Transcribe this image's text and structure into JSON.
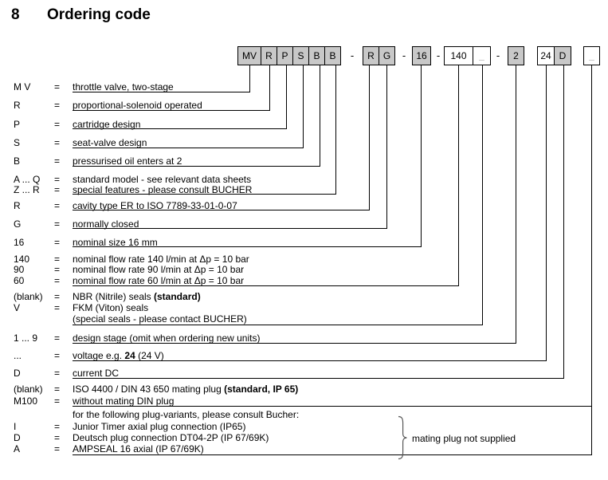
{
  "title": {
    "number": "8",
    "text": "Ordering code"
  },
  "eq_sign": "=",
  "colors": {
    "box_shaded": "#c8c8c8",
    "box_white": "#ffffff",
    "box_border": "#000000",
    "line": "#000000",
    "placeholder_gray": "#8f8f8f"
  },
  "code_row": {
    "items": [
      {
        "cells": [
          {
            "label": "MV",
            "shaded": true
          },
          {
            "label": "R",
            "shaded": true
          },
          {
            "label": "P",
            "shaded": true
          },
          {
            "label": "S",
            "shaded": true
          },
          {
            "label": "B",
            "shaded": true
          },
          {
            "label": "B",
            "shaded": true
          }
        ]
      },
      {
        "separator": "-"
      },
      {
        "cells": [
          {
            "label": "R",
            "shaded": true
          },
          {
            "label": "G",
            "shaded": true
          }
        ]
      },
      {
        "separator": "-"
      },
      {
        "cells": [
          {
            "label": "16",
            "shaded": true
          }
        ]
      },
      {
        "separator": "-"
      },
      {
        "cells": [
          {
            "label": "140",
            "shaded": false
          },
          {
            "label": "_",
            "shaded": false,
            "muted": true
          }
        ]
      },
      {
        "separator": "-"
      },
      {
        "cells": [
          {
            "label": "2",
            "shaded": true
          }
        ]
      },
      {
        "cells": [
          {
            "label": "24",
            "shaded": false
          },
          {
            "label": "D",
            "shaded": true
          }
        ]
      },
      {
        "cells": [
          {
            "label": "_",
            "shaded": false,
            "muted": true
          }
        ]
      }
    ]
  },
  "rows": [
    {
      "code": "M V",
      "segments": [
        {
          "text": "throttle valve, two-stage",
          "bold": false
        }
      ]
    },
    {
      "code": "R",
      "segments": [
        {
          "text": "proportional-solenoid operated",
          "bold": false
        }
      ]
    },
    {
      "code": "P",
      "segments": [
        {
          "text": "cartridge design",
          "bold": false
        }
      ]
    },
    {
      "code": "S",
      "segments": [
        {
          "text": "seat-valve design",
          "bold": false
        }
      ]
    },
    {
      "code": "B",
      "segments": [
        {
          "text": "pressurised oil enters at 2",
          "bold": false
        }
      ]
    },
    {
      "code": "A ... Q",
      "segments": [
        {
          "text": "standard model - see relevant data sheets",
          "bold": false
        }
      ]
    },
    {
      "code": "Z ... R",
      "segments": [
        {
          "text": "special features - please consult BUCHER",
          "bold": false
        }
      ]
    },
    {
      "code": "R",
      "segments": [
        {
          "text": "cavity type ER to ISO 7789-33-01-0-07",
          "bold": false
        }
      ]
    },
    {
      "code": "G",
      "segments": [
        {
          "text": "normally closed",
          "bold": false
        }
      ]
    },
    {
      "code": "16",
      "segments": [
        {
          "text": "nominal size 16 mm",
          "bold": false
        }
      ]
    },
    {
      "code": "140",
      "segments": [
        {
          "text": "nominal flow rate 140 l/min at Δp = 10 bar",
          "bold": false
        }
      ]
    },
    {
      "code": "90",
      "segments": [
        {
          "text": "nominal flow rate 90 l/min at Δp = 10 bar",
          "bold": false
        }
      ]
    },
    {
      "code": "60",
      "segments": [
        {
          "text": "nominal flow rate 60 l/min at Δp = 10 bar",
          "bold": false
        }
      ]
    },
    {
      "code": "(blank)",
      "segments": [
        {
          "text": "NBR (Nitrile) seals  ",
          "bold": false
        },
        {
          "text": "(standard)",
          "bold": true
        }
      ]
    },
    {
      "code": "V",
      "segments": [
        {
          "text": "FKM (Viton) seals",
          "bold": false
        }
      ]
    },
    {
      "code": "",
      "indent": true,
      "segments": [
        {
          "text": "(special seals - please contact BUCHER)",
          "bold": false
        }
      ]
    },
    {
      "code": "1 ... 9",
      "segments": [
        {
          "text": "design stage (omit when ordering new units)",
          "bold": false
        }
      ]
    },
    {
      "code": "...",
      "segments": [
        {
          "text": "voltage e.g. ",
          "bold": false
        },
        {
          "text": "24",
          "bold": true
        },
        {
          "text": " (24 V)",
          "bold": false
        }
      ]
    },
    {
      "code": "D",
      "segments": [
        {
          "text": "current  DC",
          "bold": false
        }
      ]
    },
    {
      "code": "(blank)",
      "segments": [
        {
          "text": "ISO 4400 / DIN 43 650 mating plug ",
          "bold": false
        },
        {
          "text": "(standard, IP 65)",
          "bold": true
        }
      ]
    },
    {
      "code": "M100",
      "segments": [
        {
          "text": "without mating DIN plug",
          "bold": false
        }
      ]
    },
    {
      "code": "",
      "indent": true,
      "segments": [
        {
          "text": "for the following plug-variants, please consult Bucher:",
          "bold": false
        }
      ]
    },
    {
      "code": "I",
      "segments": [
        {
          "text": "Junior Timer axial plug connection (IP65)",
          "bold": false
        }
      ]
    },
    {
      "code": "D",
      "segments": [
        {
          "text": "Deutsch plug connection DT04-2P (IP 67/69K)",
          "bold": false
        }
      ]
    },
    {
      "code": "A",
      "segments": [
        {
          "text": "AMPSEAL 16 axial (IP 67/69K)",
          "bold": false
        }
      ]
    }
  ],
  "note": {
    "text": "mating plug not supplied"
  }
}
